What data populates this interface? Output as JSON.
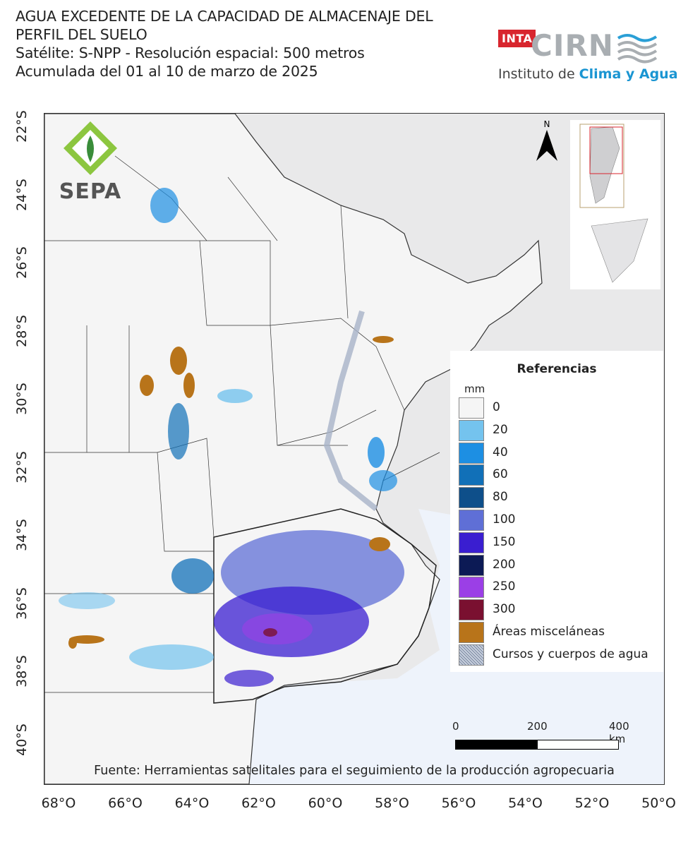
{
  "header": {
    "title_lines": [
      "AGUA EXCEDENTE DE LA CAPACIDAD DE ALMACENAJE DEL",
      "PERFIL DEL SUELO",
      "Satélite: S-NPP - Resolución espacial: 500 metros",
      "Acumulada del 01 al 10 de marzo de 2025"
    ]
  },
  "logos": {
    "inta": "INTA",
    "cirn": "CIRN",
    "institute_prefix": "Instituto de ",
    "institute_highlight": "Clima y Agua",
    "sepa": "SEPA"
  },
  "north_arrow": {
    "label": "N"
  },
  "axes": {
    "lat_labels": [
      "22°S",
      "24°S",
      "26°S",
      "28°S",
      "30°S",
      "32°S",
      "34°S",
      "36°S",
      "38°S",
      "40°S"
    ],
    "lon_labels": [
      "68°O",
      "66°O",
      "64°O",
      "62°O",
      "60°O",
      "58°O",
      "56°O",
      "54°O",
      "52°O",
      "50°O"
    ]
  },
  "legend": {
    "title": "Referencias",
    "unit": "mm",
    "items": [
      {
        "label": "0",
        "color": "#f5f5f5"
      },
      {
        "label": "20",
        "color": "#74c3ee"
      },
      {
        "label": "40",
        "color": "#1d8fe3"
      },
      {
        "label": "60",
        "color": "#1170b8"
      },
      {
        "label": "80",
        "color": "#0e4f8a"
      },
      {
        "label": "100",
        "color": "#5f6fd6"
      },
      {
        "label": "150",
        "color": "#3a1ed0"
      },
      {
        "label": "200",
        "color": "#0c1a55"
      },
      {
        "label": "250",
        "color": "#9b3fe6"
      },
      {
        "label": "300",
        "color": "#7a1030"
      },
      {
        "label": "Áreas misceláneas",
        "color": "#b8741a"
      },
      {
        "label": "Cursos y cuerpos de agua",
        "color": "#a7b3c8"
      }
    ]
  },
  "scale_bar": {
    "labels": [
      "0",
      "200",
      "400 km"
    ]
  },
  "source": "Fuente: Herramientas satelitales para el seguimiento de la producción agropecuaria"
}
